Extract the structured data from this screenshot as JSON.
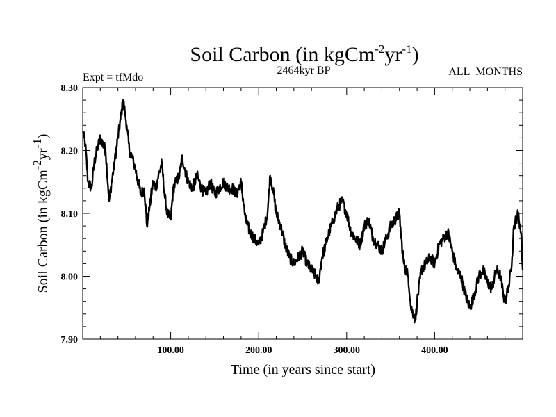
{
  "chart_data": {
    "type": "line",
    "title": {
      "main": "Soil Carbon (in kgCm",
      "exp1": "-2",
      "mid": "yr",
      "exp2": "-1",
      "close": ")"
    },
    "header": {
      "left": "Expt = tfMdo",
      "center": "2464kyr BP",
      "right": "ALL_MONTHS"
    },
    "xlabel": "Time (in years since start)",
    "ylabel": {
      "main": "Soil Carbon (in kgCm",
      "exp1": "-2",
      "mid": "yr",
      "exp2": "-1",
      "close": ")"
    },
    "xlim": [
      0,
      500
    ],
    "ylim": [
      7.9,
      8.3
    ],
    "xticks": [
      100,
      200,
      300,
      400
    ],
    "xtick_labels": [
      "100.00",
      "200.00",
      "300.00",
      "400.00"
    ],
    "yticks": [
      7.9,
      8.0,
      8.1,
      8.2,
      8.3
    ],
    "ytick_labels": [
      "7.90",
      "8.00",
      "8.10",
      "8.20",
      "8.30"
    ],
    "series": [
      {
        "name": "Soil Carbon",
        "color": "#000000",
        "x": [
          0,
          3,
          6,
          10,
          13,
          16,
          20,
          23,
          26,
          30,
          33,
          36,
          40,
          43,
          46,
          50,
          53,
          56,
          60,
          63,
          66,
          70,
          73,
          76,
          80,
          83,
          86,
          90,
          93,
          96,
          100,
          103,
          106,
          110,
          113,
          116,
          120,
          125,
          130,
          135,
          140,
          145,
          150,
          155,
          160,
          165,
          170,
          175,
          180,
          185,
          190,
          195,
          200,
          205,
          210,
          213,
          216,
          220,
          225,
          230,
          235,
          240,
          245,
          250,
          255,
          260,
          265,
          268,
          272,
          276,
          280,
          285,
          290,
          295,
          300,
          305,
          310,
          315,
          320,
          325,
          330,
          335,
          340,
          345,
          350,
          355,
          360,
          362,
          365,
          370,
          373,
          376,
          378,
          380,
          385,
          390,
          395,
          400,
          405,
          410,
          415,
          420,
          425,
          430,
          435,
          440,
          445,
          450,
          455,
          460,
          465,
          470,
          475,
          478,
          480,
          485,
          488,
          490,
          495,
          498,
          500
        ],
        "values": [
          8.23,
          8.21,
          8.15,
          8.14,
          8.18,
          8.2,
          8.22,
          8.21,
          8.2,
          8.12,
          8.15,
          8.18,
          8.22,
          8.25,
          8.28,
          8.24,
          8.2,
          8.19,
          8.17,
          8.15,
          8.13,
          8.14,
          8.08,
          8.11,
          8.15,
          8.14,
          8.16,
          8.18,
          8.13,
          8.1,
          8.09,
          8.14,
          8.15,
          8.16,
          8.19,
          8.17,
          8.15,
          8.14,
          8.16,
          8.14,
          8.13,
          8.15,
          8.13,
          8.14,
          8.15,
          8.14,
          8.14,
          8.13,
          8.15,
          8.09,
          8.07,
          8.06,
          8.05,
          8.07,
          8.1,
          8.16,
          8.14,
          8.1,
          8.08,
          8.05,
          8.03,
          8.02,
          8.03,
          8.04,
          8.02,
          8.01,
          8.0,
          7.99,
          8.03,
          8.05,
          8.07,
          8.09,
          8.11,
          8.12,
          8.1,
          8.07,
          8.06,
          8.05,
          8.08,
          8.09,
          8.06,
          8.05,
          8.04,
          8.06,
          8.08,
          8.09,
          8.1,
          8.06,
          8.02,
          8.0,
          7.95,
          7.94,
          7.93,
          7.96,
          8.01,
          8.02,
          8.03,
          8.02,
          8.05,
          8.06,
          8.07,
          8.04,
          8.01,
          8.0,
          7.97,
          7.95,
          7.97,
          8.0,
          8.01,
          7.99,
          7.98,
          8.01,
          8.0,
          7.97,
          7.96,
          7.99,
          8.03,
          8.08,
          8.1,
          8.07,
          8.01
        ]
      }
    ]
  }
}
